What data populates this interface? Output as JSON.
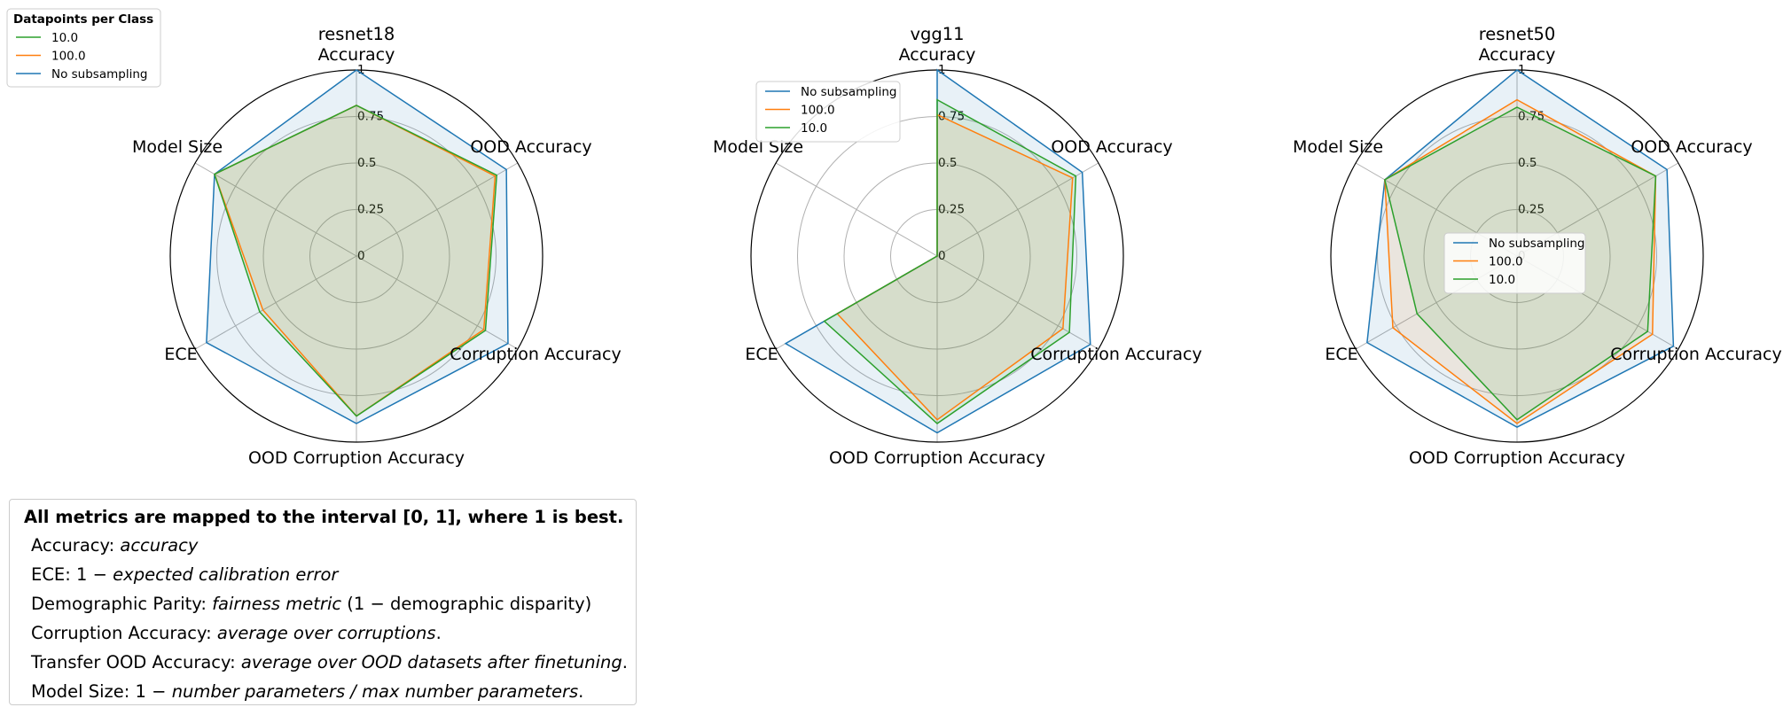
{
  "chart_data": [
    {
      "type": "radar",
      "title": "resnet18",
      "axes": [
        "Accuracy",
        "OOD Accuracy",
        "Corruption Accuracy",
        "OOD Corruption Accuracy",
        "ECE",
        "Model Size"
      ],
      "rticks": [
        "0",
        "0.25",
        "0.5",
        "0.75",
        "1"
      ],
      "rlim": [
        0,
        1
      ],
      "series": [
        {
          "name": "No subsampling",
          "color": "#1f77b4",
          "values": [
            1.0,
            0.93,
            0.94,
            0.9,
            0.93,
            0.88
          ]
        },
        {
          "name": "100.0",
          "color": "#ff7f0e",
          "values": [
            0.81,
            0.86,
            0.79,
            0.86,
            0.58,
            0.88
          ]
        },
        {
          "name": "10.0",
          "color": "#2ca02c",
          "values": [
            0.81,
            0.87,
            0.8,
            0.86,
            0.6,
            0.88
          ]
        }
      ],
      "legend": {
        "title": "Datapoints per Class",
        "entries": [
          "10.0",
          "100.0",
          "No subsampling"
        ],
        "placement": "outside upper-left"
      }
    },
    {
      "type": "radar",
      "title": "vgg11",
      "axes": [
        "Accuracy",
        "OOD Accuracy",
        "Corruption Accuracy",
        "OOD Corruption Accuracy",
        "ECE",
        "Model Size"
      ],
      "rticks": [
        "0",
        "0.25",
        "0.5",
        "0.75",
        "1"
      ],
      "rlim": [
        0,
        1
      ],
      "series": [
        {
          "name": "No subsampling",
          "color": "#1f77b4",
          "values": [
            1.0,
            0.9,
            0.95,
            0.95,
            0.94,
            0.0
          ]
        },
        {
          "name": "100.0",
          "color": "#ff7f0e",
          "values": [
            0.76,
            0.84,
            0.78,
            0.88,
            0.62,
            0.0
          ]
        },
        {
          "name": "10.0",
          "color": "#2ca02c",
          "values": [
            0.84,
            0.86,
            0.82,
            0.9,
            0.7,
            0.0
          ]
        }
      ],
      "legend": {
        "title": "",
        "entries": [
          "No subsampling",
          "100.0",
          "10.0"
        ],
        "placement": "upper-left"
      }
    },
    {
      "type": "radar",
      "title": "resnet50",
      "axes": [
        "Accuracy",
        "OOD Accuracy",
        "Corruption Accuracy",
        "OOD Corruption Accuracy",
        "ECE",
        "Model Size"
      ],
      "rticks": [
        "0",
        "0.25",
        "0.5",
        "0.75",
        "1"
      ],
      "rlim": [
        0,
        1
      ],
      "series": [
        {
          "name": "No subsampling",
          "color": "#1f77b4",
          "values": [
            1.0,
            0.93,
            0.97,
            0.92,
            0.93,
            0.82
          ]
        },
        {
          "name": "100.0",
          "color": "#ff7f0e",
          "values": [
            0.84,
            0.86,
            0.84,
            0.9,
            0.77,
            0.82
          ]
        },
        {
          "name": "10.0",
          "color": "#2ca02c",
          "values": [
            0.8,
            0.86,
            0.81,
            0.88,
            0.62,
            0.82
          ]
        }
      ],
      "legend": {
        "title": "",
        "entries": [
          "No subsampling",
          "100.0",
          "10.0"
        ],
        "placement": "center"
      }
    }
  ],
  "notes": {
    "heading": "All metrics are mapped to the interval [0, 1],  where 1 is best.",
    "lines": [
      {
        "label": "Accuracy: ",
        "desc": "accuracy",
        "tail": ""
      },
      {
        "label": "ECE: 1 − ",
        "desc": "expected calibration error",
        "tail": ""
      },
      {
        "label": "Demographic Parity: ",
        "desc": "fairness metric",
        "tail": " (1 − demographic disparity)"
      },
      {
        "label": "Corruption Accuracy: ",
        "desc": "average over corruptions",
        "tail": "."
      },
      {
        "label": "Transfer OOD Accuracy: ",
        "desc": "average over OOD datasets after finetuning",
        "tail": "."
      },
      {
        "label": "Model Size: 1 − ",
        "desc": "number parameters / max number parameters",
        "tail": "."
      }
    ]
  }
}
